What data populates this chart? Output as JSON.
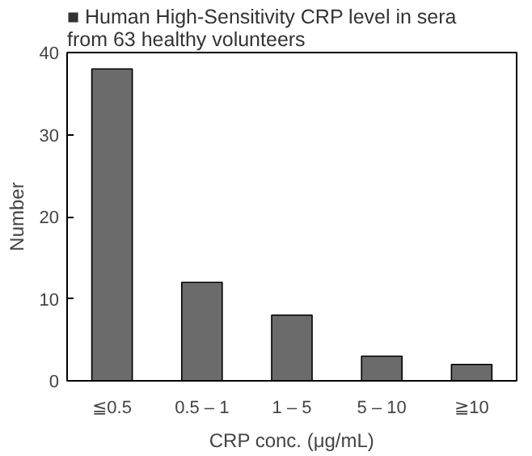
{
  "chart_data": {
    "type": "bar",
    "title": "■ Human High-Sensitivity CRP level in sera from 63 healthy volunteers",
    "categories": [
      "≦0.5",
      "0.5 – 1",
      "1 – 5",
      "5 – 10",
      "≧10"
    ],
    "values": [
      38,
      12,
      8,
      3,
      2
    ],
    "color": "#6b6b6b",
    "xlabel": "CRP conc. (μg/mL)",
    "ylabel": "Number",
    "ylim": [
      0,
      40
    ],
    "yticks": [
      0,
      10,
      20,
      30,
      40
    ],
    "grid": false
  }
}
